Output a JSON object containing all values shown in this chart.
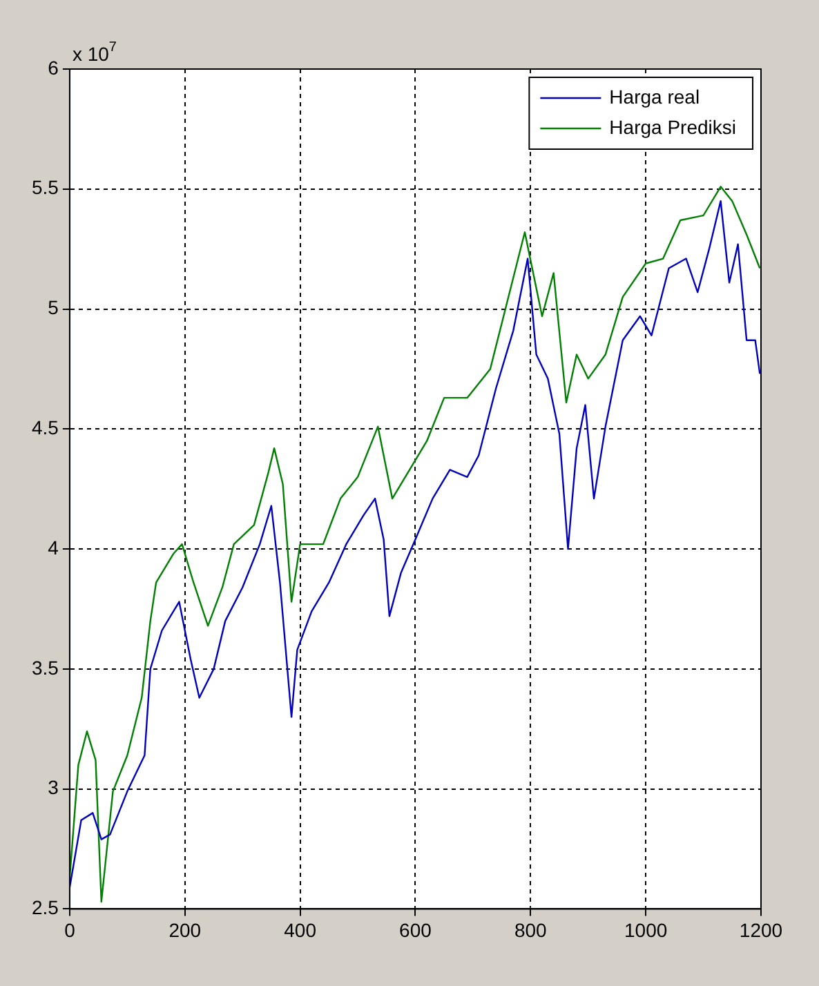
{
  "chart_data": {
    "type": "line",
    "annotations": [
      "x 10$^{7}$"
    ],
    "xlim": [
      0,
      1200
    ],
    "xticks": [
      0,
      200,
      400,
      600,
      800,
      1000,
      1200
    ],
    "ylim": [
      2.5,
      6
    ],
    "yticks": [
      2.5,
      3,
      3.5,
      4,
      4.5,
      5,
      5.5,
      6
    ],
    "grid": true,
    "legend": "top right",
    "line_style": "solid",
    "marker": "none",
    "series": [
      {
        "name": "Harga real",
        "color": "#0000c0",
        "x": [
          0,
          20,
          40,
          55,
          70,
          100,
          130,
          140,
          160,
          180,
          190,
          210,
          225,
          250,
          270,
          300,
          330,
          350,
          365,
          385,
          395,
          420,
          450,
          480,
          510,
          530,
          545,
          555,
          575,
          600,
          630,
          660,
          690,
          710,
          740,
          770,
          795,
          810,
          830,
          850,
          865,
          880,
          895,
          910,
          930,
          960,
          990,
          1010,
          1040,
          1070,
          1090,
          1110,
          1130,
          1145,
          1160,
          1175,
          1190,
          1198
        ],
        "values": [
          2.59,
          2.87,
          2.9,
          2.79,
          2.81,
          2.99,
          3.14,
          3.5,
          3.66,
          3.74,
          3.78,
          3.54,
          3.38,
          3.5,
          3.7,
          3.84,
          4.02,
          4.18,
          3.86,
          3.3,
          3.58,
          3.74,
          3.86,
          4.02,
          4.14,
          4.21,
          4.04,
          3.72,
          3.9,
          4.04,
          4.21,
          4.33,
          4.3,
          4.39,
          4.67,
          4.91,
          5.21,
          4.81,
          4.71,
          4.48,
          4.0,
          4.42,
          4.6,
          4.21,
          4.51,
          4.87,
          4.97,
          4.89,
          5.17,
          5.21,
          5.07,
          5.25,
          5.45,
          5.11,
          5.27,
          4.87,
          4.87,
          4.73
        ]
      },
      {
        "name": "Harga Prediksi",
        "color": "#008000",
        "x": [
          0,
          15,
          30,
          45,
          55,
          75,
          100,
          125,
          140,
          150,
          180,
          195,
          215,
          240,
          265,
          285,
          320,
          345,
          355,
          370,
          385,
          400,
          440,
          470,
          500,
          535,
          560,
          590,
          620,
          650,
          690,
          730,
          790,
          820,
          840,
          862,
          880,
          900,
          930,
          960,
          1000,
          1030,
          1060,
          1100,
          1130,
          1150,
          1175,
          1198
        ],
        "values": [
          2.63,
          3.1,
          3.24,
          3.12,
          2.53,
          2.99,
          3.14,
          3.38,
          3.7,
          3.86,
          3.98,
          4.02,
          3.86,
          3.68,
          3.84,
          4.02,
          4.1,
          4.32,
          4.42,
          4.27,
          3.78,
          4.02,
          4.02,
          4.21,
          4.3,
          4.51,
          4.21,
          4.33,
          4.45,
          4.63,
          4.63,
          4.75,
          5.32,
          4.97,
          5.15,
          4.61,
          4.81,
          4.71,
          4.81,
          5.05,
          5.19,
          5.21,
          5.37,
          5.39,
          5.51,
          5.45,
          5.31,
          5.17
        ]
      }
    ]
  }
}
